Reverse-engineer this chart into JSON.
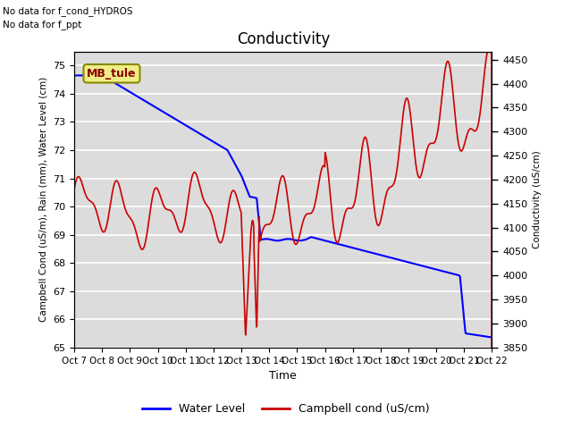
{
  "title": "Conductivity",
  "xlabel": "Time",
  "ylabel_left": "Campbell Cond (uS/m), Rain (mm), Water Level (cm)",
  "ylabel_right": "Conductivity (uS/cm)",
  "annotations": [
    "No data for f_cond_HYDROS",
    "No data for f_ppt"
  ],
  "mb_tule_label": "MB_tule",
  "ylim_left": [
    65.0,
    75.5
  ],
  "ylim_right": [
    3850,
    4467
  ],
  "yticks_left": [
    65.0,
    66.0,
    67.0,
    68.0,
    69.0,
    70.0,
    71.0,
    72.0,
    73.0,
    74.0,
    75.0
  ],
  "yticks_right": [
    3850,
    3900,
    3950,
    4000,
    4050,
    4100,
    4150,
    4200,
    4250,
    4300,
    4350,
    4400,
    4450
  ],
  "xtick_labels": [
    "Oct 7",
    "Oct 8",
    "Oct 9",
    "Oct 10",
    "Oct 11",
    "Oct 12",
    "Oct 13",
    "Oct 14",
    "Oct 15",
    "Oct 16",
    "Oct 17",
    "Oct 18",
    "Oct 19",
    "Oct 20",
    "Oct 21",
    "Oct 22"
  ],
  "water_level_color": "#0000ff",
  "campbell_cond_color": "#cc0000",
  "background_color": "#dcdcdc",
  "grid_color": "white",
  "legend_entries": [
    "Water Level",
    "Campbell cond (uS/cm)"
  ],
  "figsize": [
    6.4,
    4.8
  ],
  "dpi": 100
}
